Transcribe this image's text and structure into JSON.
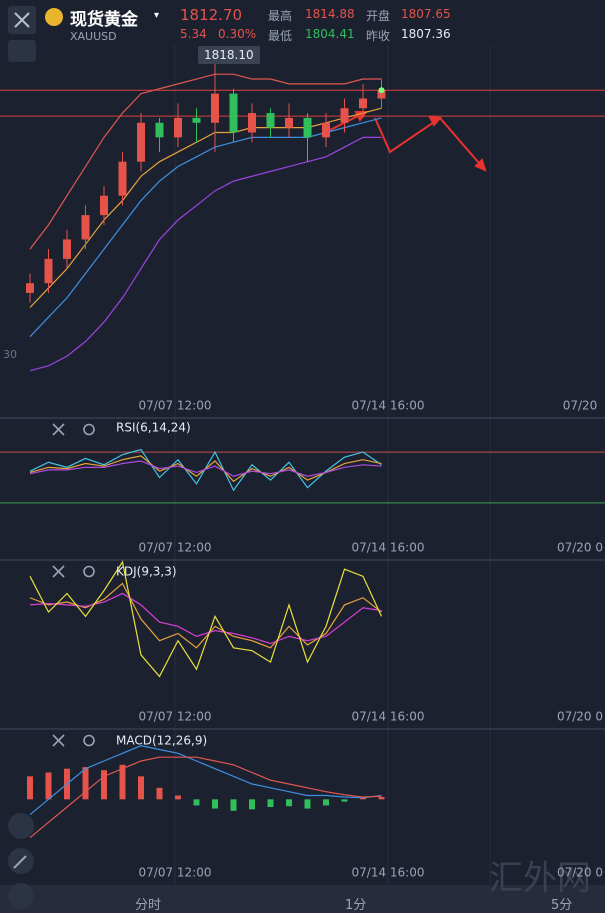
{
  "header": {
    "name": "现货黄金",
    "symbol": "XAUUSD",
    "last": "1812.70",
    "change": "5.34",
    "change_pct": "0.30%",
    "stats": [
      {
        "label": "最高",
        "value": "1814.88"
      },
      {
        "label": "开盘",
        "value": "1807.65"
      },
      {
        "label": "最低",
        "value": "1804.41"
      },
      {
        "label": "昨收",
        "value": "1807.36"
      }
    ]
  },
  "chart_data": [
    {
      "type": "candlestick",
      "tooltip": "1818.10",
      "edge_label": "30",
      "x_labels": [
        "07/07 12:00",
        "07/14 16:00",
        "07/20"
      ],
      "open": [
        1771,
        1773,
        1778,
        1782,
        1787,
        1791,
        1798,
        1806,
        1803,
        1807,
        1806,
        1812,
        1804,
        1808,
        1805,
        1807,
        1803,
        1806,
        1809,
        1811
      ],
      "high": [
        1775,
        1780,
        1784,
        1789,
        1793,
        1800,
        1808,
        1807,
        1810,
        1809,
        1818.1,
        1813,
        1810,
        1809,
        1810,
        1808,
        1808,
        1811,
        1814,
        1814.88
      ],
      "low": [
        1769,
        1771,
        1776,
        1780,
        1785,
        1789,
        1796,
        1800,
        1801,
        1802,
        1800,
        1802,
        1802,
        1803,
        1803,
        1798,
        1801,
        1804,
        1807,
        1809
      ],
      "close": [
        1773,
        1778,
        1782,
        1787,
        1791,
        1798,
        1806,
        1803,
        1807,
        1806,
        1812,
        1804,
        1808,
        1805,
        1807,
        1803,
        1806,
        1809,
        1811,
        1812.7
      ],
      "up_color": "#e5534b",
      "down_color": "#2fbf5b",
      "bands": [
        {
          "color": "#e0574f",
          "values": [
            1780,
            1785,
            1791,
            1797,
            1803,
            1808,
            1812,
            1813,
            1814,
            1815,
            1816,
            1816,
            1815,
            1815,
            1814,
            1814,
            1814,
            1814,
            1815,
            1815
          ]
        },
        {
          "color": "#e8a23a",
          "values": [
            1768,
            1772,
            1776,
            1781,
            1786,
            1790,
            1795,
            1798,
            1800,
            1802,
            1804,
            1804,
            1805,
            1805,
            1805,
            1805,
            1806,
            1807,
            1808,
            1809
          ]
        },
        {
          "color": "#3f8fe0",
          "values": [
            1762,
            1766,
            1770,
            1775,
            1780,
            1785,
            1790,
            1794,
            1797,
            1799,
            1801,
            1802,
            1803,
            1803,
            1803,
            1803,
            1804,
            1805,
            1806,
            1807
          ]
        },
        {
          "color": "#9b45e0",
          "values": [
            1755,
            1756,
            1758,
            1761,
            1765,
            1770,
            1776,
            1782,
            1786,
            1789,
            1792,
            1794,
            1795,
            1796,
            1797,
            1798,
            1799,
            1801,
            1803,
            1803
          ]
        }
      ],
      "price_lines": [
        1812.7,
        1807.36
      ],
      "price_line_color": "#d9403a",
      "ylim": [
        1750,
        1822
      ]
    },
    {
      "type": "line",
      "title": "RSI(6,14,24)",
      "x_labels": [
        "07/07 12:00",
        "07/14 16:00",
        "07/20 0"
      ],
      "series": [
        {
          "color": "#3fc7e8",
          "values": [
            55,
            62,
            58,
            65,
            60,
            68,
            72,
            50,
            64,
            45,
            70,
            40,
            60,
            48,
            62,
            42,
            55,
            66,
            70,
            60
          ]
        },
        {
          "color": "#e8a23a",
          "values": [
            54,
            58,
            57,
            61,
            59,
            64,
            67,
            55,
            61,
            51,
            63,
            47,
            57,
            51,
            58,
            48,
            54,
            61,
            64,
            61
          ]
        },
        {
          "color": "#b04be0",
          "values": [
            53,
            56,
            56,
            58,
            58,
            61,
            63,
            57,
            59,
            54,
            59,
            51,
            55,
            53,
            56,
            51,
            54,
            58,
            60,
            59
          ]
        }
      ],
      "levels": [
        70,
        30
      ],
      "level_colors": [
        "#c0504a",
        "#3aa04a"
      ],
      "ylim": [
        0,
        100
      ]
    },
    {
      "type": "line",
      "title": "KDJ(9,3,3)",
      "x_labels": [
        "07/07 12:00",
        "07/14 16:00",
        "07/20 0"
      ],
      "series": [
        {
          "color": "#e8a23a",
          "values": [
            75,
            70,
            72,
            68,
            74,
            85,
            60,
            45,
            50,
            40,
            55,
            48,
            45,
            40,
            55,
            42,
            50,
            70,
            75,
            65
          ]
        },
        {
          "color": "#d83fd8",
          "values": [
            70,
            71,
            70,
            69,
            72,
            78,
            70,
            58,
            55,
            48,
            52,
            50,
            47,
            43,
            48,
            45,
            48,
            58,
            68,
            66
          ]
        },
        {
          "color": "#e8e03a",
          "values": [
            90,
            65,
            78,
            62,
            80,
            100,
            35,
            20,
            45,
            25,
            62,
            40,
            38,
            30,
            70,
            30,
            55,
            95,
            90,
            62
          ]
        }
      ],
      "ylim": [
        0,
        100
      ]
    },
    {
      "type": "macd",
      "title": "MACD(12,26,9)",
      "x_labels": [
        "07/07 12:00",
        "07/14 16:00",
        "07/20 0"
      ],
      "histogram": [
        3,
        3.5,
        4,
        4.2,
        3.8,
        4.5,
        3,
        1.5,
        0.5,
        -0.8,
        -1.2,
        -1.5,
        -1.3,
        -1,
        -0.9,
        -1.2,
        -0.8,
        -0.3,
        0.2,
        0.3
      ],
      "pos_color": "#e5534b",
      "neg_color": "#2fbf5b",
      "series": [
        {
          "color": "#3f8fe0",
          "values": [
            -2,
            0,
            2,
            4,
            5,
            6,
            7,
            6.5,
            6,
            5,
            4,
            3,
            2,
            1.5,
            1,
            0.5,
            0.5,
            0.3,
            0.2,
            0.5
          ]
        },
        {
          "color": "#e0574f",
          "values": [
            -5,
            -3,
            -1,
            1,
            3,
            4,
            5,
            5.5,
            5.5,
            5.5,
            5,
            4.5,
            3.5,
            2.5,
            2,
            1.5,
            1,
            0.6,
            0.3,
            0.4
          ]
        }
      ],
      "ylim": [
        -4,
        8
      ]
    }
  ],
  "footer": {
    "tabs": [
      "分时",
      "1分",
      "5分"
    ]
  },
  "watermark": "汇外网"
}
